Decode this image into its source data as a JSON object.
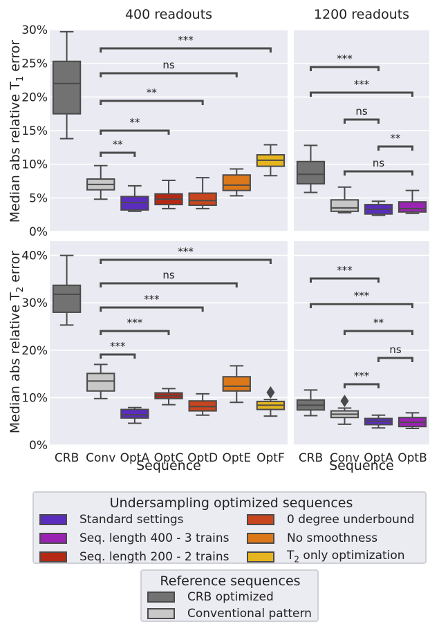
{
  "colors": {
    "panel_bg": "#eaeaf2",
    "grid": "#ffffff",
    "box_edge": "#4a4a4a",
    "text": "#222222"
  },
  "categories_left": [
    "CRB",
    "Conv",
    "OptA",
    "OptC",
    "OptD",
    "OptE",
    "OptF"
  ],
  "categories_right": [
    "CRB",
    "Conv",
    "OptA",
    "OptB"
  ],
  "category_colors": {
    "CRB": "#727272",
    "Conv": "#c8c8c8",
    "OptA": "#5a2dbe",
    "OptB": "#9b23b4",
    "OptC": "#b42814",
    "OptD": "#c8461e",
    "OptE": "#dc7819",
    "OptF": "#e6b41e"
  },
  "x_axis_label": "Sequence",
  "legend_undersampling": {
    "title": "Undersampling optimized sequences",
    "items": [
      {
        "label": "Standard settings",
        "color": "#5a2dbe"
      },
      {
        "label": "0 degree underbound",
        "color": "#c8461e"
      },
      {
        "label": "Seq. length 400 - 3 trains",
        "color": "#9b23b4"
      },
      {
        "label": "No smoothness",
        "color": "#dc7819"
      },
      {
        "label": "Seq. length 200 - 2 trains",
        "color": "#b42814"
      },
      {
        "label": "T2 only optimization",
        "color": "#e6b41e"
      }
    ]
  },
  "legend_reference": {
    "title": "Reference sequences",
    "items": [
      {
        "label": "CRB optimized",
        "color": "#727272"
      },
      {
        "label": "Conventional pattern",
        "color": "#c8c8c8"
      }
    ]
  },
  "chart_data": [
    {
      "type": "box",
      "title": "400 readouts",
      "ylabel": "Median abs relative T1 error",
      "xlabel": "Sequence",
      "ylim": [
        0,
        30
      ],
      "yticks": [
        "0%",
        "5%",
        "10%",
        "15%",
        "20%",
        "25%",
        "30%"
      ],
      "categories": [
        "CRB",
        "Conv",
        "OptA",
        "OptC",
        "OptD",
        "OptE",
        "OptF"
      ],
      "boxes": [
        {
          "name": "CRB",
          "min": 13.8,
          "q1": 17.5,
          "median": 22.0,
          "q3": 25.3,
          "max": 29.7
        },
        {
          "name": "Conv",
          "min": 4.8,
          "q1": 6.2,
          "median": 7.0,
          "q3": 7.8,
          "max": 9.8
        },
        {
          "name": "OptA",
          "min": 3.0,
          "q1": 3.2,
          "median": 4.3,
          "q3": 5.2,
          "max": 6.8
        },
        {
          "name": "OptC",
          "min": 3.4,
          "q1": 4.0,
          "median": 4.8,
          "q3": 5.6,
          "max": 7.6
        },
        {
          "name": "OptD",
          "min": 3.4,
          "q1": 3.9,
          "median": 4.6,
          "q3": 5.7,
          "max": 8.0
        },
        {
          "name": "OptE",
          "min": 5.3,
          "q1": 6.1,
          "median": 6.9,
          "q3": 8.4,
          "max": 9.3
        },
        {
          "name": "OptF",
          "min": 8.3,
          "q1": 9.7,
          "median": 10.6,
          "q3": 11.4,
          "max": 12.9
        }
      ],
      "brackets": [
        {
          "from": "Conv",
          "to": "OptA",
          "label": "**"
        },
        {
          "from": "Conv",
          "to": "OptC",
          "label": "**"
        },
        {
          "from": "Conv",
          "to": "OptD",
          "label": "**"
        },
        {
          "from": "Conv",
          "to": "OptE",
          "label": "ns"
        },
        {
          "from": "Conv",
          "to": "OptF",
          "label": "***"
        }
      ]
    },
    {
      "type": "box",
      "title": "1200 readouts",
      "ylabel": "Median abs relative T1 error",
      "xlabel": "Sequence",
      "ylim": [
        0,
        30
      ],
      "categories": [
        "CRB",
        "Conv",
        "OptA",
        "OptB"
      ],
      "boxes": [
        {
          "name": "CRB",
          "min": 5.8,
          "q1": 7.1,
          "median": 8.5,
          "q3": 10.4,
          "max": 12.8
        },
        {
          "name": "Conv",
          "min": 2.8,
          "q1": 3.0,
          "median": 3.5,
          "q3": 4.7,
          "max": 6.6
        },
        {
          "name": "OptA",
          "min": 2.4,
          "q1": 2.6,
          "median": 3.3,
          "q3": 4.0,
          "max": 4.5
        },
        {
          "name": "OptB",
          "min": 2.7,
          "q1": 2.9,
          "median": 3.4,
          "q3": 4.4,
          "max": 6.1
        }
      ],
      "brackets": [
        {
          "from": "CRB",
          "to": "OptA",
          "label": "***"
        },
        {
          "from": "CRB",
          "to": "OptB",
          "label": "***"
        },
        {
          "from": "OptA",
          "to": "OptB",
          "label": "**"
        },
        {
          "from": "Conv",
          "to": "OptA",
          "label": "ns"
        },
        {
          "from": "Conv",
          "to": "OptB",
          "label": "ns"
        }
      ]
    },
    {
      "type": "box",
      "ylabel": "Median abs relative T2 error",
      "xlabel": "Sequence",
      "ylim": [
        0,
        43
      ],
      "yticks": [
        "0%",
        "10%",
        "20%",
        "30%",
        "40%"
      ],
      "categories": [
        "CRB",
        "Conv",
        "OptA",
        "OptC",
        "OptD",
        "OptE",
        "OptF"
      ],
      "boxes": [
        {
          "name": "CRB",
          "min": 25.3,
          "q1": 28.0,
          "median": 31.8,
          "q3": 33.7,
          "max": 40.0
        },
        {
          "name": "Conv",
          "min": 9.8,
          "q1": 11.4,
          "median": 13.5,
          "q3": 15.1,
          "max": 17.0
        },
        {
          "name": "OptA",
          "min": 4.6,
          "q1": 5.7,
          "median": 6.4,
          "q3": 7.5,
          "max": 7.9
        },
        {
          "name": "OptC",
          "min": 8.5,
          "q1": 9.8,
          "median": 10.4,
          "q3": 11.0,
          "max": 11.9
        },
        {
          "name": "OptD",
          "min": 6.3,
          "q1": 7.2,
          "median": 8.1,
          "q3": 9.3,
          "max": 10.8
        },
        {
          "name": "OptE",
          "min": 9.0,
          "q1": 11.4,
          "median": 12.4,
          "q3": 14.4,
          "max": 16.7
        },
        {
          "name": "OptF",
          "min": 6.1,
          "q1": 7.5,
          "median": 8.4,
          "q3": 9.2,
          "max": 9.6,
          "outliers": [
            11.1
          ]
        }
      ],
      "brackets": [
        {
          "from": "Conv",
          "to": "OptA",
          "label": "***"
        },
        {
          "from": "Conv",
          "to": "OptC",
          "label": "***"
        },
        {
          "from": "Conv",
          "to": "OptD",
          "label": "***"
        },
        {
          "from": "Conv",
          "to": "OptE",
          "label": "ns"
        },
        {
          "from": "Conv",
          "to": "OptF",
          "label": "***"
        }
      ]
    },
    {
      "type": "box",
      "ylabel": "Median abs relative T2 error",
      "xlabel": "Sequence",
      "ylim": [
        0,
        43
      ],
      "categories": [
        "CRB",
        "Conv",
        "OptA",
        "OptB"
      ],
      "boxes": [
        {
          "name": "CRB",
          "min": 6.2,
          "q1": 7.4,
          "median": 8.4,
          "q3": 9.5,
          "max": 11.6
        },
        {
          "name": "Conv",
          "min": 4.4,
          "q1": 5.8,
          "median": 6.5,
          "q3": 7.2,
          "max": 7.8,
          "outliers": [
            9.3
          ]
        },
        {
          "name": "OptA",
          "min": 3.6,
          "q1": 4.3,
          "median": 5.0,
          "q3": 5.6,
          "max": 6.3
        },
        {
          "name": "OptB",
          "min": 3.5,
          "q1": 3.9,
          "median": 4.8,
          "q3": 5.8,
          "max": 6.8
        }
      ],
      "brackets": [
        {
          "from": "CRB",
          "to": "OptA",
          "label": "***"
        },
        {
          "from": "CRB",
          "to": "OptB",
          "label": "***"
        },
        {
          "from": "Conv",
          "to": "OptA",
          "label": "***"
        },
        {
          "from": "Conv",
          "to": "OptB",
          "label": "**"
        },
        {
          "from": "OptA",
          "to": "OptB",
          "label": "ns"
        }
      ]
    }
  ]
}
